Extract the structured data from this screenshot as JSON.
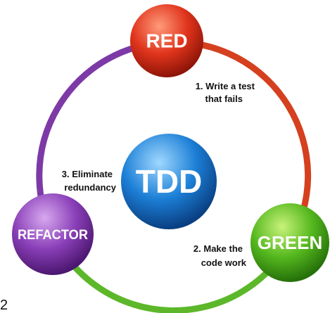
{
  "center": {
    "label": "TDD"
  },
  "nodes": [
    {
      "label": "RED"
    },
    {
      "label": "GREEN"
    },
    {
      "label": "REFACTOR"
    }
  ],
  "steps": [
    {
      "lines": [
        "1. Write a test",
        "that fails"
      ]
    },
    {
      "lines": [
        "2. Make the",
        "code work"
      ]
    },
    {
      "lines": [
        "3. Eliminate",
        "redundancy"
      ]
    }
  ],
  "page_number": "2"
}
